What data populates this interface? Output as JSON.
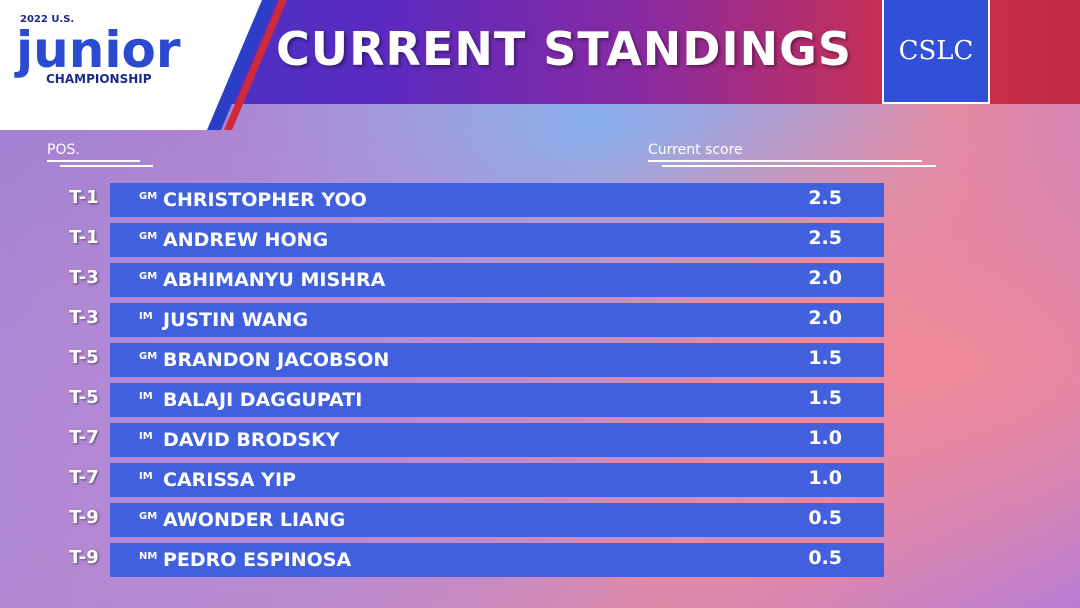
{
  "header": {
    "event_year": "2022 U.S.",
    "event_name": "junior",
    "event_sub": "CHAMPIONSHIP",
    "title": "CURRENT STANDINGS",
    "sponsor": "CSLC"
  },
  "table": {
    "columns": [
      "POS.",
      "Current score"
    ],
    "rows": [
      [
        "T-1",
        "GM",
        "CHRISTOPHER YOO",
        "2.5"
      ],
      [
        "T-1",
        "GM",
        "ANDREW HONG",
        "2.5"
      ],
      [
        "T-3",
        "GM",
        "ABHIMANYU MISHRA",
        "2.0"
      ],
      [
        "T-3",
        "IM",
        "JUSTIN WANG",
        "2.0"
      ],
      [
        "T-5",
        "GM",
        "BRANDON JACOBSON",
        "1.5"
      ],
      [
        "T-5",
        "IM",
        "BALAJI DAGGUPATI",
        "1.5"
      ],
      [
        "T-7",
        "IM",
        "DAVID BRODSKY",
        "1.0"
      ],
      [
        "T-7",
        "IM",
        "CARISSA YIP",
        "1.0"
      ],
      [
        "T-9",
        "GM",
        "AWONDER LIANG",
        "0.5"
      ],
      [
        "T-9",
        "NM",
        "PEDRO ESPINOSA",
        "0.5"
      ]
    ]
  }
}
